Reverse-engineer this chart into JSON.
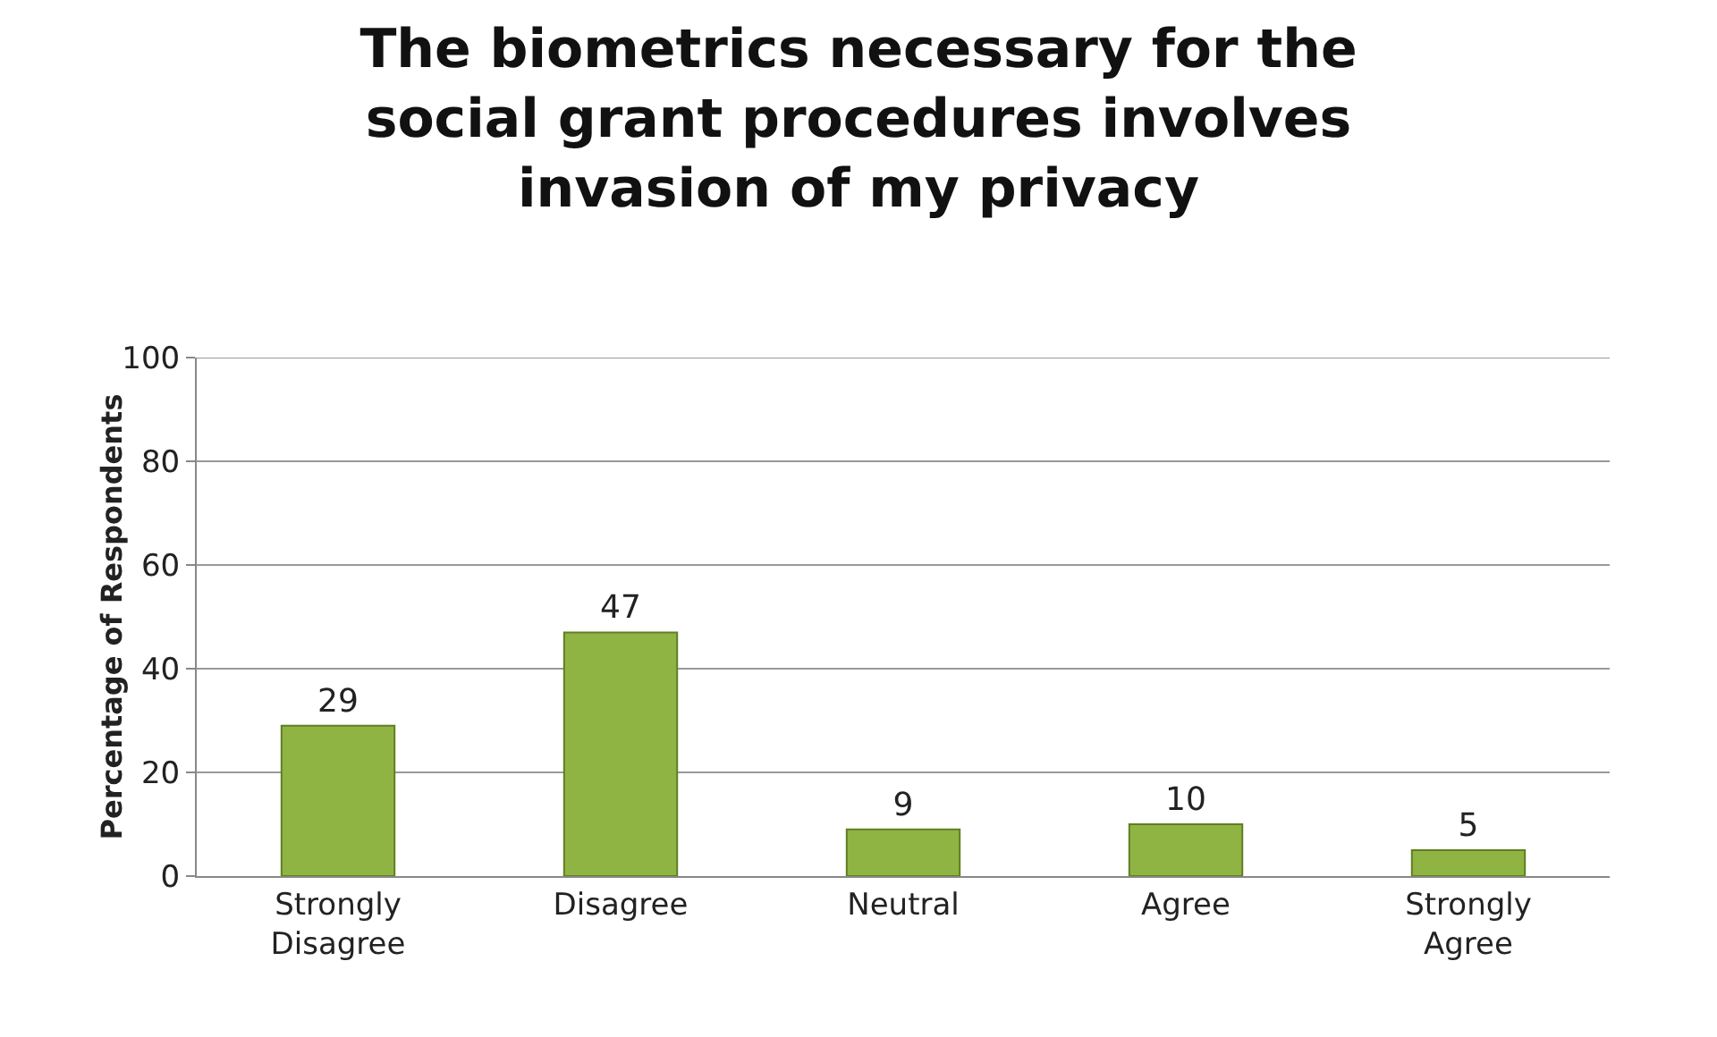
{
  "chart_data": {
    "type": "bar",
    "title": "The biometrics necessary for the social grant procedures involves invasion of my privacy",
    "ylabel": "Percentage of Respondents",
    "categories": [
      "Strongly Disagree",
      "Disagree",
      "Neutral",
      "Agree",
      "Strongly Agree"
    ],
    "values": [
      29,
      47,
      9,
      10,
      5
    ],
    "color": "#8fb443",
    "ylim": [
      0,
      100
    ],
    "yticks": [
      0,
      20,
      40,
      60,
      80,
      100
    ],
    "grid": "y",
    "data_labels": true
  }
}
